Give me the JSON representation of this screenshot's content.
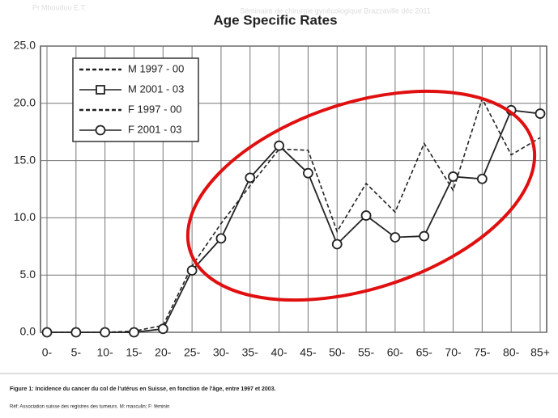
{
  "header": {
    "author": "Pr.Mboudou  E.T.",
    "event": "Séminaire de chirurgie gynécologique Brazzaville déc 2011"
  },
  "chart_data": {
    "type": "line",
    "title": "Age Specific Rates",
    "categories": [
      "0-",
      "5-",
      "10-",
      "15-",
      "20-",
      "25-",
      "30-",
      "35-",
      "40-",
      "45-",
      "50-",
      "55-",
      "60-",
      "65-",
      "70-",
      "75-",
      "80-",
      "85+"
    ],
    "series": [
      {
        "name": "M 1997 - 00",
        "color": "#222222",
        "dash": true,
        "marker": null,
        "values": [
          null,
          null,
          null,
          null,
          null,
          null,
          null,
          null,
          null,
          null,
          null,
          null,
          null,
          null,
          null,
          null,
          null,
          null
        ]
      },
      {
        "name": "M 2001 - 03",
        "color": "#222222",
        "dash": false,
        "marker": "square",
        "values": [
          null,
          null,
          null,
          null,
          null,
          null,
          null,
          null,
          null,
          null,
          null,
          null,
          null,
          null,
          null,
          null,
          null,
          null
        ]
      },
      {
        "name": "F 1997 - 00",
        "color": "#222222",
        "dash": true,
        "marker": null,
        "values": [
          0,
          0,
          0,
          0.1,
          0.6,
          5.8,
          9.5,
          12.8,
          16,
          15.9,
          8.8,
          13,
          10.5,
          16.5,
          12.4,
          20.4,
          15.5,
          17
        ]
      },
      {
        "name": "F 2001 - 03",
        "color": "#222222",
        "dash": false,
        "marker": "circle",
        "values": [
          0,
          0,
          0,
          0,
          0.3,
          5.4,
          8.2,
          13.5,
          16.3,
          13.9,
          7.7,
          10.2,
          8.3,
          8.4,
          13.6,
          13.4,
          19.4,
          19.1
        ]
      }
    ],
    "ylim": [
      0,
      25
    ],
    "yticks": [
      {
        "value": 0,
        "label": "0.0"
      },
      {
        "value": 5,
        "label": "5.0"
      },
      {
        "value": 10,
        "label": "10.0"
      },
      {
        "value": 15,
        "label": "15.0"
      },
      {
        "value": 20,
        "label": "20.0"
      },
      {
        "value": 25,
        "label": "25.0"
      }
    ],
    "grid": true
  },
  "caption": {
    "figure": "Figure 1: Incidence du cancer du col de l'utérus en Suisse, en fonction de l'âge, entre 1997 et 2003.",
    "reference": "Réf: Association suisse des registres des tumeurs. M: masculin; F: féminin"
  }
}
